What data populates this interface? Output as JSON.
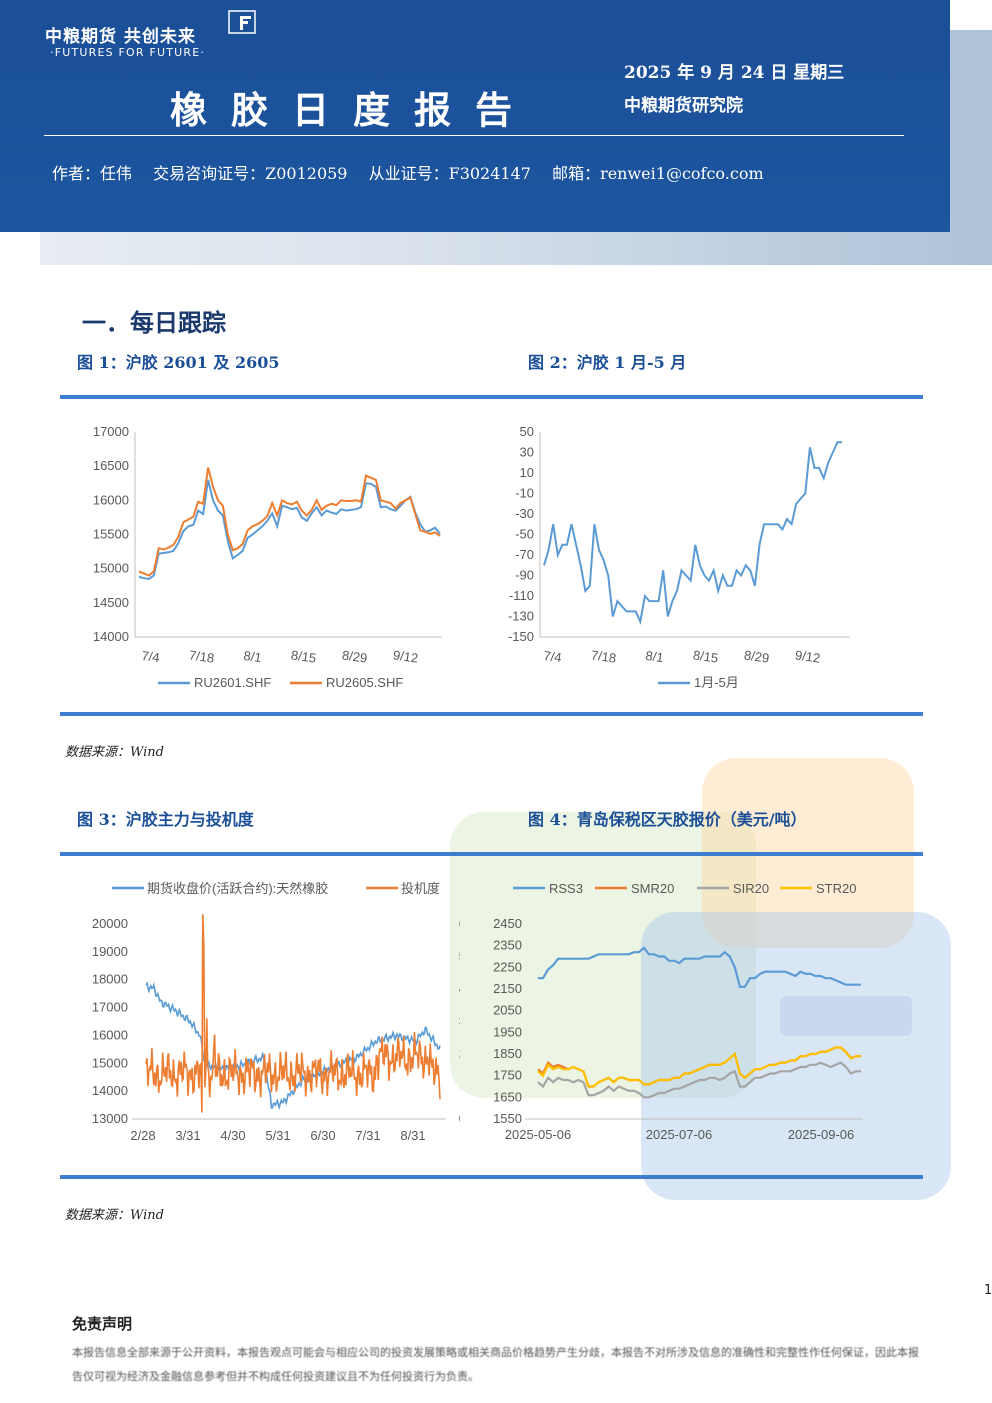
{
  "header": {
    "logo_cn": "中粮期货 共创未来",
    "logo_en": "·FUTURES FOR FUTURE·",
    "title": "橡胶日度报告",
    "date": "2025 年 9 月 24 日 星期三",
    "institute": "中粮期货研究院",
    "author": "作者：任伟",
    "license1": "交易咨询证号：Z0012059",
    "license2": "从业证号：F3024147",
    "email": "邮箱：renwei1@cofco.com"
  },
  "section1": {
    "title": "一．每日跟踪"
  },
  "figures": {
    "fig1_title": "图 1：沪胶 2601 及 2605",
    "fig2_title": "图 2：沪胶 1 月-5 月",
    "fig3_title": "图 3：沪胶主力与投机度",
    "fig4_title": "图 4：青岛保税区天胶报价（美元/吨）",
    "source1": "数据来源：Wind",
    "source2": "数据来源：Wind"
  },
  "page_number": "1",
  "disclaimer": {
    "title": "免责声明",
    "text": "本报告信息全部来源于公开资料，本报告观点可能会与相应公司的投资发展策略或相关商品价格趋势产生分歧，本报告不对所涉及信息的准确性和完整性作任何保证，因此本报告仅可视为经济及金融信息参考但并不构成任何投资建议且不为任何投资行为负责。"
  },
  "chart_data": [
    {
      "type": "line",
      "id": "fig1",
      "x_ticks": [
        "7/4",
        "7/18",
        "8/1",
        "8/15",
        "8/29",
        "9/12"
      ],
      "ylim": [
        14000,
        17000
      ],
      "y_ticks": [
        "17000",
        "16500",
        "16000",
        "15500",
        "15000",
        "14500",
        "14000"
      ],
      "series": [
        {
          "name": "RU2601.SHF",
          "color": "#5b9bd5",
          "values": [
            14880,
            14860,
            14850,
            14900,
            15220,
            15230,
            15240,
            15260,
            15380,
            15550,
            15620,
            15640,
            15850,
            15800,
            16300,
            16000,
            15850,
            15780,
            15400,
            15150,
            15200,
            15260,
            15450,
            15500,
            15560,
            15620,
            15700,
            15810,
            15620,
            15920,
            15900,
            15870,
            15890,
            15750,
            15700,
            15810,
            15900,
            15780,
            15850,
            15820,
            15800,
            15870,
            15850,
            15860,
            15870,
            15900,
            16250,
            16240,
            16200,
            15900,
            15910,
            15870,
            15850,
            15920,
            16000,
            16050,
            15820,
            15650,
            15540,
            15560,
            15600,
            15510
          ]
        },
        {
          "name": "RU2605.SHF",
          "color": "#ed7d31",
          "values": [
            14960,
            14930,
            14900,
            14960,
            15300,
            15280,
            15310,
            15350,
            15470,
            15680,
            15720,
            15760,
            15980,
            15950,
            16480,
            16200,
            16000,
            15920,
            15500,
            15270,
            15300,
            15360,
            15560,
            15620,
            15650,
            15700,
            15770,
            15960,
            15780,
            16000,
            15960,
            15940,
            15980,
            15850,
            15780,
            15860,
            16000,
            15860,
            15920,
            15950,
            15930,
            16000,
            15990,
            15990,
            16000,
            15980,
            16360,
            16330,
            16300,
            16000,
            15980,
            15960,
            15880,
            15960,
            16000,
            16040,
            15800,
            15560,
            15540,
            15510,
            15530,
            15480
          ]
        }
      ]
    },
    {
      "type": "line",
      "id": "fig2",
      "x_ticks": [
        "7/4",
        "7/18",
        "8/1",
        "8/15",
        "8/29",
        "9/12"
      ],
      "ylim": [
        -150,
        50
      ],
      "y_ticks": [
        "50",
        "30",
        "10",
        "-10",
        "-30",
        "-50",
        "-70",
        "-90",
        "-110",
        "-130",
        "-150"
      ],
      "series": [
        {
          "name": "1月-5月",
          "color": "#5b9bd5",
          "values": [
            -80,
            -65,
            -40,
            -70,
            -60,
            -60,
            -40,
            -60,
            -80,
            -105,
            -100,
            -40,
            -65,
            -75,
            -90,
            -130,
            -115,
            -120,
            -125,
            -125,
            -125,
            -135,
            -110,
            -115,
            -115,
            -115,
            -85,
            -130,
            -115,
            -105,
            -85,
            -90,
            -95,
            -60,
            -80,
            -90,
            -95,
            -85,
            -105,
            -90,
            -100,
            -100,
            -85,
            -90,
            -80,
            -85,
            -100,
            -60,
            -40,
            -40,
            -40,
            -40,
            -45,
            -35,
            -40,
            -20,
            -15,
            -10,
            35,
            15,
            15,
            5,
            20,
            30,
            40,
            40
          ]
        }
      ]
    },
    {
      "type": "line",
      "id": "fig3",
      "x_ticks": [
        "2/28",
        "3/31",
        "4/30",
        "5/31",
        "6/30",
        "7/31",
        "8/31"
      ],
      "ylim_left": [
        13000,
        20000
      ],
      "y_ticks_left": [
        "20000",
        "19000",
        "18000",
        "17000",
        "16000",
        "15000",
        "14000",
        "13000"
      ],
      "ylim_right": [
        0,
        6
      ],
      "y_ticks_right": [
        "6",
        "5",
        "4",
        "3",
        "2",
        "1",
        "0"
      ],
      "series": [
        {
          "name": "期货收盘价(活跃合约):天然橡胶",
          "color": "#5b9bd5",
          "axis": "left"
        },
        {
          "name": "投机度",
          "color": "#ed7d31",
          "axis": "right"
        }
      ]
    },
    {
      "type": "line",
      "id": "fig4",
      "x_ticks": [
        "2025-05-06",
        "2025-07-06",
        "2025-09-06"
      ],
      "ylim": [
        1550,
        2450
      ],
      "y_ticks": [
        "2450",
        "2350",
        "2250",
        "2150",
        "2050",
        "1950",
        "1850",
        "1750",
        "1650",
        "1550"
      ],
      "series": [
        {
          "name": "RSS3",
          "color": "#5b9bd5",
          "values": [
            2200,
            2200,
            2240,
            2260,
            2290,
            2290,
            2290,
            2290,
            2290,
            2290,
            2290,
            2300,
            2310,
            2310,
            2310,
            2310,
            2310,
            2310,
            2310,
            2320,
            2320,
            2340,
            2310,
            2310,
            2300,
            2300,
            2280,
            2280,
            2270,
            2290,
            2290,
            2290,
            2290,
            2300,
            2300,
            2300,
            2300,
            2320,
            2300,
            2250,
            2160,
            2160,
            2200,
            2200,
            2220,
            2230,
            2230,
            2230,
            2230,
            2230,
            2220,
            2210,
            2230,
            2220,
            2220,
            2210,
            2210,
            2200,
            2200,
            2190,
            2180,
            2170,
            2170,
            2170,
            2170
          ]
        },
        {
          "name": "SMR20",
          "color": "#ed7d31",
          "values": [
            1780,
            1760,
            1810,
            1790,
            1800,
            1790,
            1780,
            1790,
            1780,
            1770,
            1700,
            1700,
            1720,
            1730,
            1740,
            1720,
            1740,
            1740,
            1730,
            1730,
            1730,
            1710,
            1710,
            1720,
            1730,
            1730,
            1730,
            1740,
            1740,
            1760,
            1760,
            1770,
            1780,
            1790,
            1800,
            1800,
            1800,
            1810,
            1830,
            1850,
            1760,
            1740,
            1760,
            1780,
            1780,
            1790,
            1800,
            1800,
            1810,
            1810,
            1820,
            1820,
            1840,
            1840,
            1850,
            1850,
            1860,
            1860,
            1870,
            1880,
            1880,
            1860,
            1830,
            1840,
            1840
          ]
        },
        {
          "name": "SIR20",
          "color": "#a5a5a5",
          "values": [
            1720,
            1700,
            1740,
            1720,
            1740,
            1730,
            1730,
            1720,
            1730,
            1720,
            1660,
            1660,
            1670,
            1680,
            1700,
            1680,
            1700,
            1690,
            1680,
            1680,
            1670,
            1650,
            1650,
            1660,
            1670,
            1670,
            1680,
            1690,
            1690,
            1700,
            1710,
            1720,
            1730,
            1730,
            1740,
            1740,
            1730,
            1740,
            1760,
            1770,
            1700,
            1700,
            1720,
            1740,
            1740,
            1750,
            1760,
            1760,
            1770,
            1770,
            1770,
            1780,
            1790,
            1790,
            1800,
            1800,
            1810,
            1800,
            1790,
            1800,
            1810,
            1790,
            1760,
            1770,
            1770
          ]
        },
        {
          "name": "STR20",
          "color": "#ffc000",
          "values": [
            1770,
            1750,
            1800,
            1780,
            1790,
            1780,
            1780,
            1790,
            1780,
            1770,
            1700,
            1700,
            1720,
            1730,
            1740,
            1720,
            1740,
            1740,
            1730,
            1730,
            1730,
            1710,
            1710,
            1720,
            1730,
            1730,
            1730,
            1740,
            1740,
            1760,
            1760,
            1770,
            1780,
            1790,
            1800,
            1800,
            1800,
            1810,
            1830,
            1850,
            1760,
            1740,
            1760,
            1780,
            1780,
            1790,
            1800,
            1800,
            1810,
            1810,
            1820,
            1820,
            1840,
            1840,
            1850,
            1850,
            1860,
            1860,
            1870,
            1880,
            1880,
            1860,
            1830,
            1840,
            1840
          ]
        }
      ]
    }
  ]
}
